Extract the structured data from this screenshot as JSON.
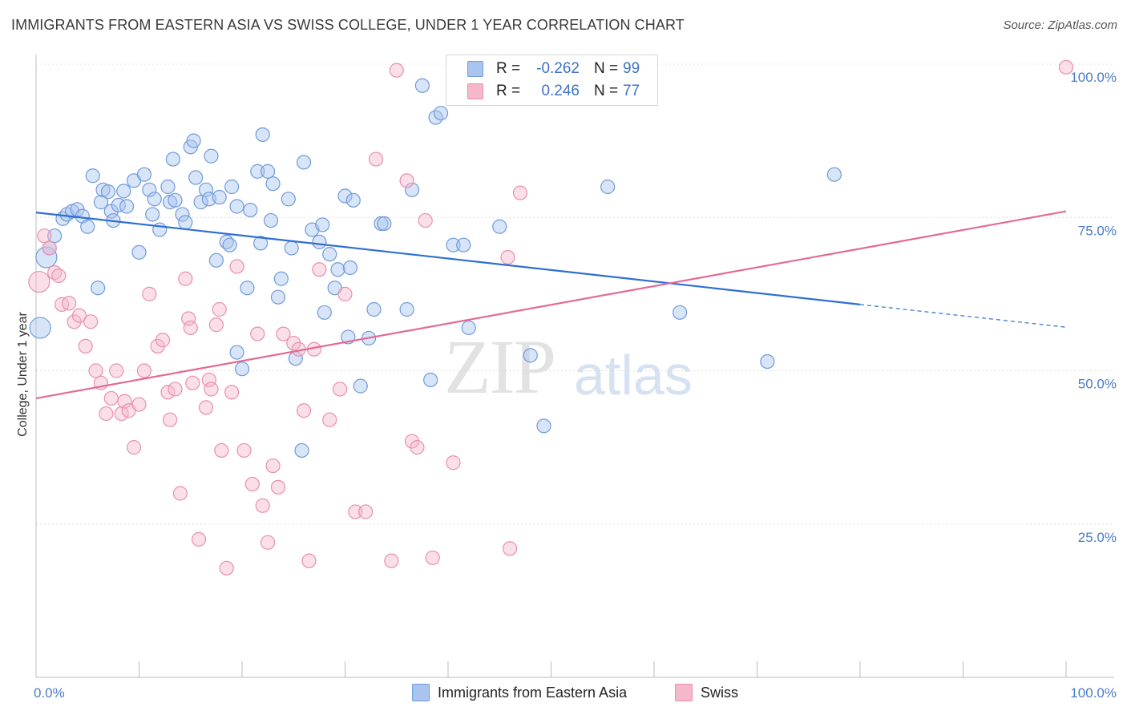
{
  "title": "IMMIGRANTS FROM EASTERN ASIA VS SWISS COLLEGE, UNDER 1 YEAR CORRELATION CHART",
  "source": "Source: ZipAtlas.com",
  "watermark": {
    "zip": "ZIP",
    "atlas": "atlas"
  },
  "legend": {
    "rows": [
      {
        "r_label": "R =",
        "r_value": "-0.262",
        "n_label": "N =",
        "n_value": "99",
        "color": "#a9c4ef"
      },
      {
        "r_label": "R =",
        "r_value": "0.246",
        "n_label": "N =",
        "n_value": "77",
        "color": "#f5b8cb"
      }
    ]
  },
  "bottom_legend": [
    {
      "label": "Immigrants from Eastern Asia",
      "color": "#a9c4ef"
    },
    {
      "label": "Swiss",
      "color": "#f5b8cb"
    }
  ],
  "chart_data": {
    "type": "scatter",
    "title": "IMMIGRANTS FROM EASTERN ASIA VS SWISS COLLEGE, UNDER 1 YEAR CORRELATION CHART",
    "xlabel": "",
    "ylabel": "College, Under 1 year",
    "xlim": [
      0,
      100
    ],
    "ylim": [
      0,
      100
    ],
    "x_tick_labels": [
      "0.0%",
      "100.0%"
    ],
    "y_tick_labels": [
      "25.0%",
      "50.0%",
      "75.0%",
      "100.0%"
    ],
    "y_ticks": [
      25,
      50,
      75,
      100
    ],
    "grid": true,
    "legend_position": "top-center",
    "series": [
      {
        "name": "Immigrants from Eastern Asia",
        "color": "#a9c4ef",
        "stroke": "#6f9bd9",
        "trend": {
          "x0": 0,
          "y0": 75.8,
          "x1": 80,
          "y1": 60.8,
          "dashed_to_x": 100,
          "dashed_to_y": 57.1,
          "color": "#2f6fd1"
        },
        "points": [
          [
            0.4,
            57.0
          ],
          [
            1.0,
            68.5
          ],
          [
            1.3,
            70.0
          ],
          [
            1.8,
            72.0
          ],
          [
            2.6,
            74.8
          ],
          [
            3.0,
            75.5
          ],
          [
            3.5,
            76.0
          ],
          [
            4.0,
            76.3
          ],
          [
            4.5,
            75.2
          ],
          [
            5.0,
            73.5
          ],
          [
            5.5,
            81.8
          ],
          [
            6.0,
            63.5
          ],
          [
            6.3,
            77.5
          ],
          [
            6.5,
            79.5
          ],
          [
            7.0,
            79.2
          ],
          [
            7.3,
            76.0
          ],
          [
            7.5,
            74.5
          ],
          [
            8.0,
            77.0
          ],
          [
            8.5,
            79.3
          ],
          [
            8.8,
            76.8
          ],
          [
            9.5,
            81.0
          ],
          [
            10.0,
            69.3
          ],
          [
            10.5,
            82.0
          ],
          [
            11.0,
            79.5
          ],
          [
            11.3,
            75.5
          ],
          [
            11.5,
            78.0
          ],
          [
            12.0,
            73.0
          ],
          [
            12.8,
            80.0
          ],
          [
            13.0,
            77.5
          ],
          [
            13.3,
            84.5
          ],
          [
            13.5,
            77.8
          ],
          [
            14.2,
            75.5
          ],
          [
            14.5,
            74.2
          ],
          [
            15.0,
            86.5
          ],
          [
            15.3,
            87.5
          ],
          [
            15.5,
            81.5
          ],
          [
            16.0,
            77.5
          ],
          [
            16.5,
            79.5
          ],
          [
            16.8,
            78.0
          ],
          [
            17.0,
            85.0
          ],
          [
            17.5,
            68.0
          ],
          [
            17.8,
            78.3
          ],
          [
            18.5,
            71.0
          ],
          [
            18.8,
            70.5
          ],
          [
            19.0,
            80.0
          ],
          [
            19.5,
            76.8
          ],
          [
            19.5,
            53.0
          ],
          [
            20.0,
            50.3
          ],
          [
            20.5,
            63.5
          ],
          [
            20.8,
            76.2
          ],
          [
            21.5,
            82.5
          ],
          [
            21.8,
            70.8
          ],
          [
            22.0,
            88.5
          ],
          [
            22.5,
            82.5
          ],
          [
            22.8,
            74.5
          ],
          [
            23.0,
            80.5
          ],
          [
            23.5,
            62.0
          ],
          [
            23.8,
            65.0
          ],
          [
            24.5,
            78.0
          ],
          [
            24.8,
            70.0
          ],
          [
            25.2,
            52.0
          ],
          [
            25.8,
            37.0
          ],
          [
            26.0,
            84.0
          ],
          [
            26.8,
            73.0
          ],
          [
            27.5,
            71.0
          ],
          [
            27.8,
            73.8
          ],
          [
            28.0,
            59.5
          ],
          [
            28.5,
            69.0
          ],
          [
            29.0,
            63.5
          ],
          [
            29.3,
            66.5
          ],
          [
            30.0,
            78.5
          ],
          [
            30.3,
            55.5
          ],
          [
            30.5,
            66.8
          ],
          [
            30.8,
            77.8
          ],
          [
            31.5,
            47.5
          ],
          [
            32.3,
            55.3
          ],
          [
            32.8,
            60.0
          ],
          [
            33.5,
            74.0
          ],
          [
            33.8,
            74.0
          ],
          [
            36.0,
            60.0
          ],
          [
            36.5,
            79.5
          ],
          [
            37.5,
            96.5
          ],
          [
            38.3,
            48.5
          ],
          [
            38.8,
            91.3
          ],
          [
            39.3,
            92.0
          ],
          [
            40.5,
            70.5
          ],
          [
            41.5,
            70.5
          ],
          [
            42.0,
            57.0
          ],
          [
            45.0,
            73.5
          ],
          [
            48.0,
            52.5
          ],
          [
            49.3,
            41.0
          ],
          [
            55.5,
            80.0
          ],
          [
            62.5,
            59.5
          ],
          [
            71.0,
            51.5
          ],
          [
            77.5,
            82.0
          ]
        ]
      },
      {
        "name": "Swiss",
        "color": "#f5b8cb",
        "stroke": "#e98fae",
        "trend": {
          "x0": 0,
          "y0": 45.5,
          "x1": 100,
          "y1": 76.0,
          "color": "#e36a94"
        },
        "points": [
          [
            0.3,
            64.5
          ],
          [
            0.8,
            72.0
          ],
          [
            1.3,
            70.0
          ],
          [
            1.8,
            66.0
          ],
          [
            2.2,
            65.5
          ],
          [
            2.5,
            60.8
          ],
          [
            3.2,
            61.0
          ],
          [
            3.7,
            58.0
          ],
          [
            4.2,
            59.0
          ],
          [
            4.8,
            54.0
          ],
          [
            5.3,
            58.0
          ],
          [
            5.8,
            50.0
          ],
          [
            6.3,
            48.0
          ],
          [
            6.8,
            43.0
          ],
          [
            7.3,
            45.5
          ],
          [
            7.8,
            50.0
          ],
          [
            8.3,
            43.0
          ],
          [
            8.6,
            45.0
          ],
          [
            9.0,
            43.5
          ],
          [
            9.5,
            37.5
          ],
          [
            10.0,
            44.5
          ],
          [
            10.5,
            50.0
          ],
          [
            11.0,
            62.5
          ],
          [
            11.8,
            54.0
          ],
          [
            12.3,
            55.0
          ],
          [
            12.8,
            46.5
          ],
          [
            13.0,
            42.0
          ],
          [
            13.5,
            47.0
          ],
          [
            14.0,
            30.0
          ],
          [
            14.5,
            65.0
          ],
          [
            14.8,
            58.5
          ],
          [
            15.0,
            57.0
          ],
          [
            15.2,
            48.0
          ],
          [
            15.8,
            22.5
          ],
          [
            16.5,
            44.0
          ],
          [
            16.8,
            48.5
          ],
          [
            17.0,
            47.0
          ],
          [
            17.5,
            57.5
          ],
          [
            17.8,
            60.0
          ],
          [
            18.0,
            37.0
          ],
          [
            18.5,
            17.8
          ],
          [
            19.0,
            46.5
          ],
          [
            19.5,
            67.0
          ],
          [
            20.2,
            37.0
          ],
          [
            21.0,
            31.5
          ],
          [
            21.5,
            56.0
          ],
          [
            22.0,
            28.0
          ],
          [
            22.5,
            22.0
          ],
          [
            23.0,
            34.5
          ],
          [
            23.5,
            31.0
          ],
          [
            24.0,
            56.0
          ],
          [
            25.0,
            54.5
          ],
          [
            25.5,
            53.5
          ],
          [
            26.0,
            43.5
          ],
          [
            26.5,
            19.0
          ],
          [
            27.0,
            53.5
          ],
          [
            27.5,
            66.5
          ],
          [
            28.5,
            42.0
          ],
          [
            29.5,
            47.0
          ],
          [
            30.0,
            62.5
          ],
          [
            31.0,
            27.0
          ],
          [
            32.0,
            27.0
          ],
          [
            33.0,
            84.5
          ],
          [
            34.5,
            19.0
          ],
          [
            35.0,
            99.0
          ],
          [
            36.0,
            81.0
          ],
          [
            36.5,
            38.5
          ],
          [
            37.0,
            37.5
          ],
          [
            37.8,
            74.5
          ],
          [
            38.5,
            19.5
          ],
          [
            40.5,
            35.0
          ],
          [
            45.8,
            68.5
          ],
          [
            46.0,
            21.0
          ],
          [
            47.0,
            79.0
          ],
          [
            100,
            99.5
          ]
        ]
      }
    ]
  }
}
